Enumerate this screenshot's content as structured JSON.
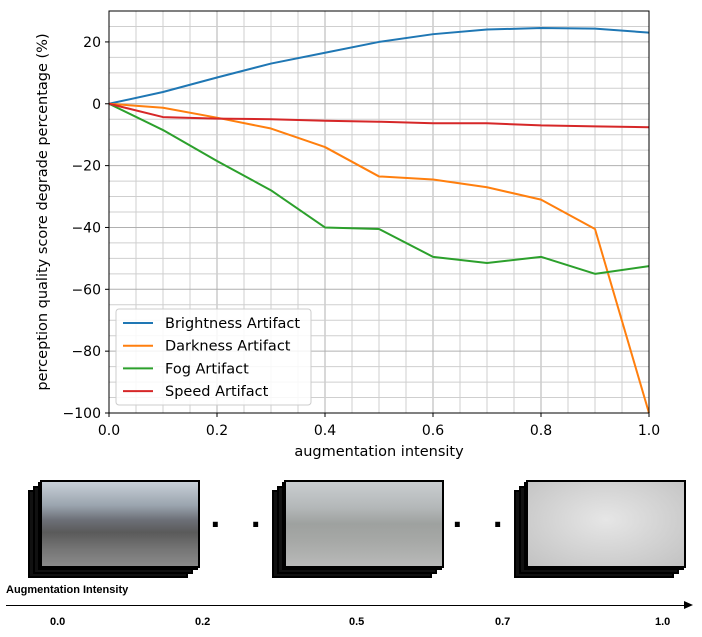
{
  "chart_data": {
    "type": "line",
    "xlabel": "augmentation intensity",
    "ylabel": "perception quality score degrade percentage (%)",
    "xlim": [
      0.0,
      1.0
    ],
    "ylim": [
      -100,
      30
    ],
    "xticks": [
      "0.0",
      "0.2",
      "0.4",
      "0.6",
      "0.8",
      "1.0"
    ],
    "yticks": [
      "20",
      "0",
      "−20",
      "−40",
      "−60",
      "−80",
      "−100"
    ],
    "ytick_values": [
      20,
      0,
      -20,
      -40,
      -60,
      -80,
      -100
    ],
    "xtick_values": [
      0.0,
      0.2,
      0.4,
      0.6,
      0.8,
      1.0
    ],
    "grid": true,
    "legend_placement": "lower-left",
    "x": [
      0.0,
      0.1,
      0.2,
      0.3,
      0.4,
      0.5,
      0.6,
      0.7,
      0.8,
      0.9,
      1.0
    ],
    "series": [
      {
        "name": "Brightness Artifact",
        "color": "#1f77b4",
        "values": [
          0,
          3.8,
          8.5,
          13,
          16.5,
          20,
          22.5,
          24,
          24.5,
          24.3,
          23
        ]
      },
      {
        "name": "Darkness Artifact",
        "color": "#ff7f0e",
        "values": [
          0,
          -1.3,
          -4.5,
          -8,
          -14,
          -23.5,
          -24.5,
          -27,
          -31,
          -40.5,
          -100
        ]
      },
      {
        "name": "Fog Artifact",
        "color": "#2ca02c",
        "values": [
          0,
          -8.5,
          -18.5,
          -28,
          -40,
          -40.5,
          -49.5,
          -51.5,
          -49.5,
          -55,
          -52.5
        ]
      },
      {
        "name": "Speed Artifact",
        "color": "#d62728",
        "values": [
          0,
          -4.3,
          -4.8,
          -5,
          -5.5,
          -5.8,
          -6.3,
          -6.3,
          -7,
          -7.3,
          -7.6
        ]
      }
    ]
  },
  "diagram": {
    "intensity_label": "Augmentation Intensity",
    "intensity_ticks": [
      "0.0",
      "0.2",
      "0.5",
      "0.7",
      "1.0"
    ],
    "ellipsis": "· · ·"
  }
}
